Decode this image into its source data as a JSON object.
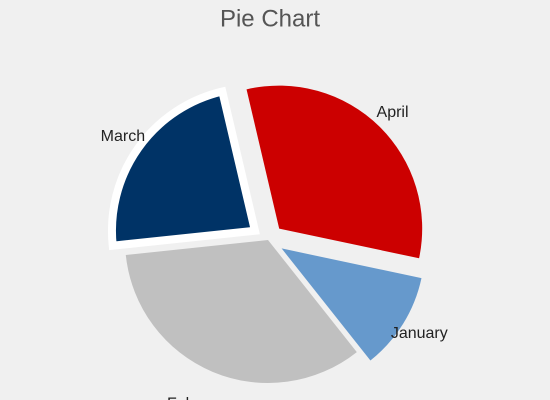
{
  "chart_data": {
    "type": "pie",
    "title": "Pie Chart",
    "categories": [
      "January",
      "February",
      "March",
      "April"
    ],
    "values": [
      11,
      34,
      23,
      32
    ],
    "colors": [
      "#6699cc",
      "#c0c0c0",
      "#003366",
      "#cc0000"
    ],
    "explode": [
      true,
      false,
      true,
      true
    ]
  }
}
